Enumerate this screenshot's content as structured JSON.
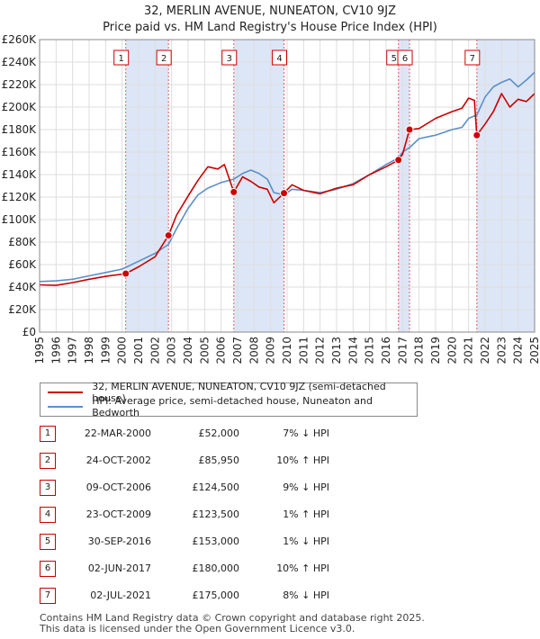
{
  "title_line1": "32, MERLIN AVENUE, NUNEATON, CV10 9JZ",
  "title_line2": "Price paid vs. HM Land Registry's House Price Index (HPI)",
  "colors": {
    "property": "#cc0000",
    "hpi": "#5b8fc9",
    "shade": "#dde6f7",
    "grid": "#dddddd"
  },
  "chart_data": {
    "type": "line",
    "ylim": [
      0,
      260000
    ],
    "xlim": [
      1995,
      2025
    ],
    "y_ticks": [
      0,
      20000,
      40000,
      60000,
      80000,
      100000,
      120000,
      140000,
      160000,
      180000,
      200000,
      220000,
      240000,
      260000
    ],
    "y_tick_labels": [
      "£0",
      "£20K",
      "£40K",
      "£60K",
      "£80K",
      "£100K",
      "£120K",
      "£140K",
      "£160K",
      "£180K",
      "£200K",
      "£220K",
      "£240K",
      "£260K"
    ],
    "x_ticks": [
      1995,
      1996,
      1997,
      1998,
      1999,
      2000,
      2001,
      2002,
      2003,
      2004,
      2005,
      2006,
      2007,
      2008,
      2009,
      2010,
      2011,
      2012,
      2013,
      2014,
      2015,
      2016,
      2017,
      2018,
      2019,
      2020,
      2021,
      2022,
      2023,
      2024,
      2025
    ],
    "shaded_ranges": [
      [
        2000.22,
        2002.81
      ],
      [
        2006.77,
        2009.81
      ],
      [
        2016.75,
        2017.42
      ],
      [
        2021.5,
        2025
      ]
    ],
    "series": [
      {
        "name": "32, MERLIN AVENUE, NUNEATON, CV10 9JZ (semi-detached house)",
        "color": "#cc0000",
        "x": [
          1995.0,
          1996.0,
          1997.0,
          1998.0,
          1999.0,
          2000.22,
          2001.0,
          2002.0,
          2002.81,
          2003.3,
          2004.0,
          2004.6,
          2005.2,
          2005.8,
          2006.2,
          2006.77,
          2007.3,
          2007.8,
          2008.3,
          2008.8,
          2009.2,
          2009.81,
          2010.3,
          2011.0,
          2012.0,
          2013.0,
          2014.0,
          2015.0,
          2016.0,
          2016.75,
          2017.0,
          2017.42,
          2018.0,
          2019.0,
          2020.0,
          2020.6,
          2021.0,
          2021.35,
          2021.5,
          2022.0,
          2022.5,
          2023.0,
          2023.5,
          2024.0,
          2024.5,
          2025.0
        ],
        "y": [
          42000,
          41500,
          44000,
          47000,
          49500,
          52000,
          58000,
          67000,
          85950,
          104000,
          121000,
          135000,
          147000,
          145000,
          149000,
          124500,
          138000,
          134000,
          129000,
          127000,
          115000,
          123500,
          131000,
          126000,
          123000,
          128000,
          131000,
          140000,
          147000,
          153000,
          158000,
          180000,
          181000,
          190000,
          196000,
          199000,
          208000,
          206000,
          175000,
          185000,
          196000,
          212000,
          200000,
          207000,
          205000,
          212000
        ]
      },
      {
        "name": "HPI: Average price, semi-detached house, Nuneaton and Bedworth",
        "color": "#5b8fc9",
        "x": [
          1995.0,
          1996.0,
          1997.0,
          1998.0,
          1999.0,
          2000.0,
          2001.0,
          2002.0,
          2002.81,
          2003.3,
          2004.0,
          2004.6,
          2005.2,
          2006.0,
          2006.77,
          2007.3,
          2007.8,
          2008.3,
          2008.8,
          2009.2,
          2009.81,
          2010.3,
          2011.0,
          2012.0,
          2013.0,
          2014.0,
          2015.0,
          2016.0,
          2016.75,
          2017.0,
          2017.42,
          2018.0,
          2019.0,
          2020.0,
          2020.6,
          2021.0,
          2021.5,
          2022.0,
          2022.5,
          2023.0,
          2023.5,
          2024.0,
          2024.5,
          2025.0
        ],
        "y": [
          45000,
          45500,
          47000,
          50000,
          53000,
          56000,
          63000,
          70000,
          78000,
          92000,
          110000,
          122000,
          128000,
          133000,
          136000,
          141000,
          144000,
          141000,
          136000,
          124000,
          122000,
          127000,
          126000,
          124000,
          127000,
          132000,
          140000,
          149000,
          155000,
          160000,
          164000,
          172000,
          175000,
          180000,
          182000,
          190000,
          193000,
          209000,
          218000,
          222000,
          225000,
          218000,
          224000,
          231000
        ]
      }
    ],
    "sale_markers": [
      {
        "label": "1",
        "x": 2000.22,
        "y": 52000
      },
      {
        "label": "2",
        "x": 2002.81,
        "y": 85950
      },
      {
        "label": "3",
        "x": 2006.77,
        "y": 124500
      },
      {
        "label": "4",
        "x": 2009.81,
        "y": 123500
      },
      {
        "label": "5",
        "x": 2016.75,
        "y": 153000
      },
      {
        "label": "6",
        "x": 2017.42,
        "y": 180000
      },
      {
        "label": "7",
        "x": 2021.5,
        "y": 175000
      }
    ]
  },
  "legend": {
    "property_label": "32, MERLIN AVENUE, NUNEATON, CV10 9JZ (semi-detached house)",
    "hpi_label": "HPI: Average price, semi-detached house, Nuneaton and Bedworth"
  },
  "transactions": [
    {
      "num": "1",
      "date": "22-MAR-2000",
      "price": "£52,000",
      "hpi": "7% ↓ HPI"
    },
    {
      "num": "2",
      "date": "24-OCT-2002",
      "price": "£85,950",
      "hpi": "10% ↑ HPI"
    },
    {
      "num": "3",
      "date": "09-OCT-2006",
      "price": "£124,500",
      "hpi": "9% ↓ HPI"
    },
    {
      "num": "4",
      "date": "23-OCT-2009",
      "price": "£123,500",
      "hpi": "1% ↑ HPI"
    },
    {
      "num": "5",
      "date": "30-SEP-2016",
      "price": "£153,000",
      "hpi": "1% ↓ HPI"
    },
    {
      "num": "6",
      "date": "02-JUN-2017",
      "price": "£180,000",
      "hpi": "10% ↑ HPI"
    },
    {
      "num": "7",
      "date": "02-JUL-2021",
      "price": "£175,000",
      "hpi": "8% ↓ HPI"
    }
  ],
  "footer_line1": "Contains HM Land Registry data © Crown copyright and database right 2025.",
  "footer_line2": "This data is licensed under the Open Government Licence v3.0."
}
